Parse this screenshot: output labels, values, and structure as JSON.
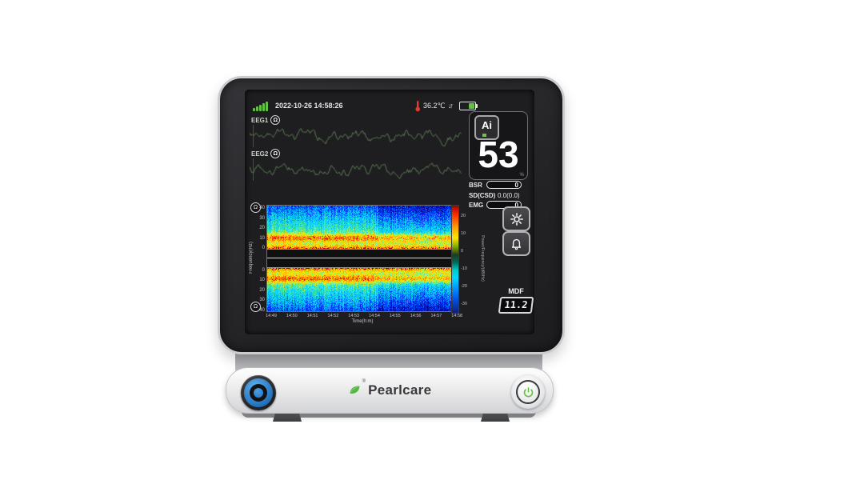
{
  "device": {
    "brand": "Pearlcare",
    "reg_mark": "®"
  },
  "screen": {
    "status_bar": {
      "datetime": "2022-10-26 14:58:26",
      "temperature": "36.2℃",
      "arrows": "↓↑",
      "signal_bars": 5,
      "battery_state": "charged-green"
    },
    "eeg_channels": [
      {
        "label": "EEG1",
        "impedance_icon": "Ω"
      },
      {
        "label": "EEG2",
        "impedance_icon": "Ω"
      }
    ],
    "index_panel": {
      "ai_label": "Ai",
      "value": "53",
      "unit": "%"
    },
    "metrics": {
      "bsr": {
        "label": "BSR",
        "value": "0"
      },
      "sd_csd": {
        "label": "SD(CSD)",
        "value": "0.0(0.0)"
      },
      "emg": {
        "label": "EMG",
        "value": "0"
      }
    },
    "mdf": {
      "label": "MDF",
      "value": "11.2"
    },
    "spectrogram": {
      "type": "heatmap",
      "ylabel": "Frequency(Hz)",
      "yticks_top": [
        "40",
        "30",
        "20",
        "10",
        "0"
      ],
      "yticks_bottom": [
        "0",
        "10",
        "20",
        "30",
        "40"
      ],
      "xlabel": "Time(h:m)",
      "xticks": [
        "14:49",
        "14:50",
        "14:51",
        "14:52",
        "14:53",
        "14:54",
        "14:55",
        "14:56",
        "14:57",
        "14:58"
      ],
      "colorbar": {
        "label": "Power/Frequency/(dB/Hz)",
        "ticks": [
          "20",
          "10",
          "0",
          "-10",
          "-20",
          "-30"
        ]
      },
      "description": "Mirrored EEG1/EEG2 density spectral array: strong yellow band near 10 Hz, red speckles below 5 Hz, blue background fading darker after 14:53"
    }
  },
  "colors": {
    "accent_green": "#54b948",
    "ai_green": "#76c043",
    "knob_blue": "#2a7fd4",
    "wave_green": "#5d7a54",
    "battery_green": "#62c242",
    "thermometer_red": "#e03c31",
    "screen_bg": "#1e1e21"
  }
}
